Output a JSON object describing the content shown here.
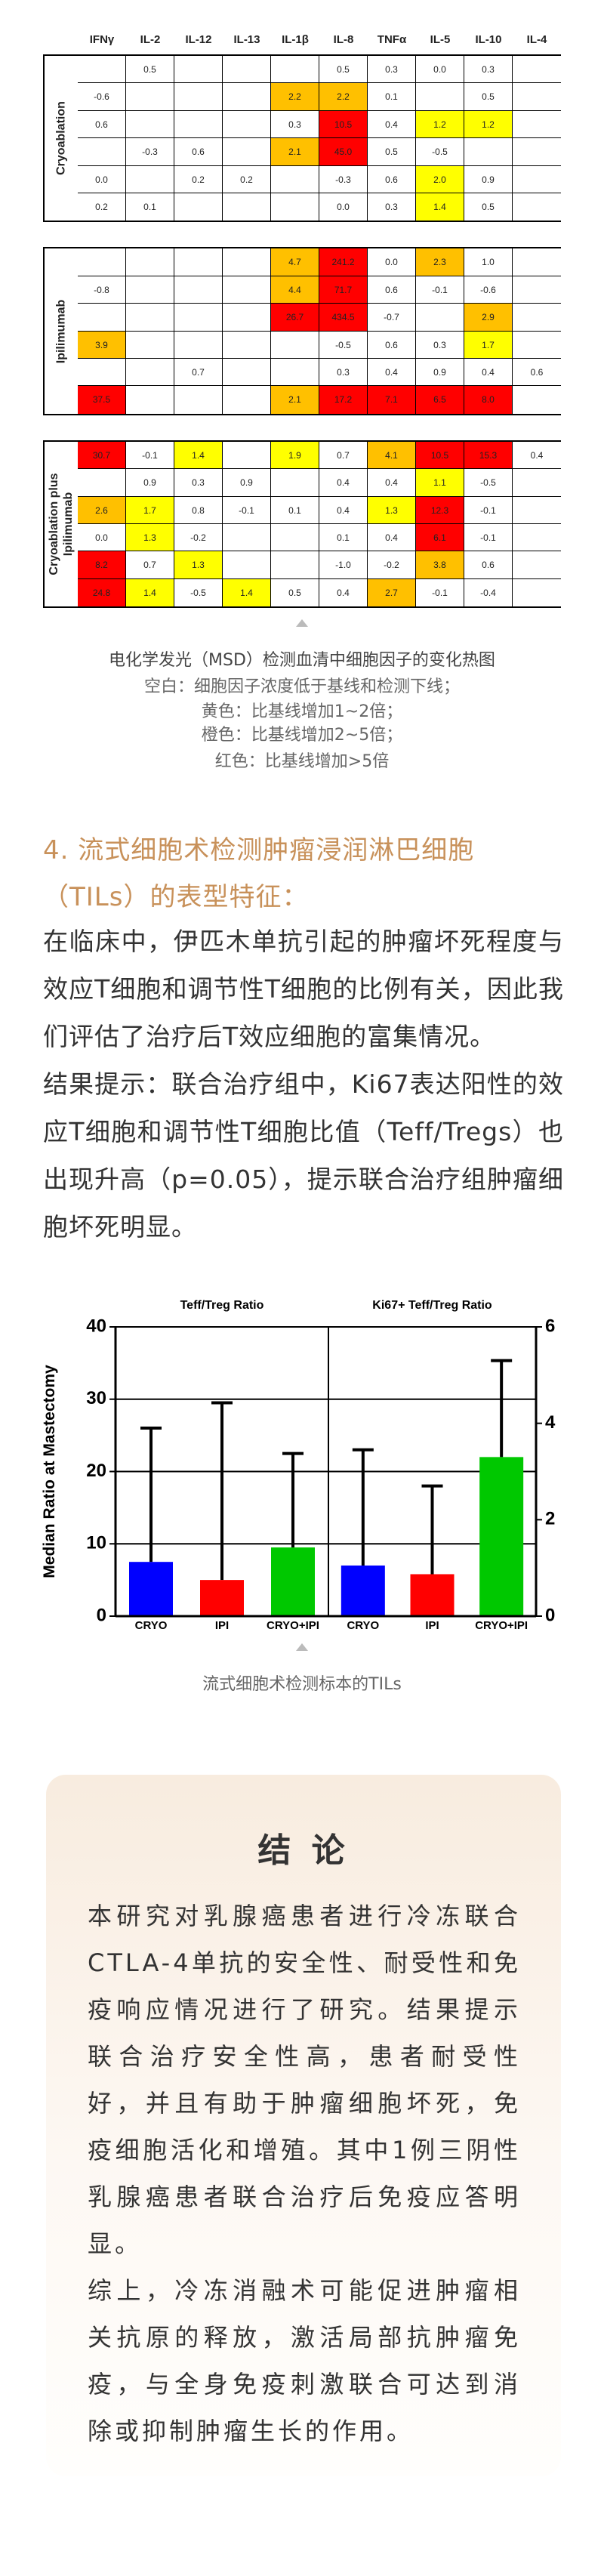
{
  "heatmap": {
    "columns": [
      "IFNγ",
      "IL-2",
      "IL-12",
      "IL-13",
      "IL-1β",
      "IL-8",
      "TNFα",
      "IL-5",
      "IL-10",
      "IL-4"
    ],
    "levels": [
      {
        "above": 1,
        "color": "#ffff00"
      },
      {
        "above": 2,
        "color": "#ffc000"
      },
      {
        "above": 5,
        "color": "#ff0000"
      }
    ],
    "groups": [
      {
        "label": "Cryoablation",
        "rows": [
          [
            null,
            "0.5",
            null,
            null,
            null,
            "0.5",
            "0.3",
            "0.0",
            "0.3",
            null
          ],
          [
            "-0.6",
            null,
            null,
            null,
            "2.2",
            "2.2",
            "0.1",
            null,
            "0.5",
            null
          ],
          [
            "0.6",
            null,
            null,
            null,
            "0.3",
            "10.5",
            "0.4",
            "1.2",
            "1.2",
            null
          ],
          [
            null,
            "-0.3",
            "0.6",
            null,
            "2.1",
            "45.0",
            "0.5",
            "-0.5",
            null,
            null
          ],
          [
            "0.0",
            null,
            "0.2",
            "0.2",
            null,
            "-0.3",
            "0.6",
            "2.0",
            "0.9",
            null
          ],
          [
            "0.2",
            "0.1",
            null,
            null,
            null,
            "0.0",
            "0.3",
            "1.4",
            "0.5",
            null
          ]
        ]
      },
      {
        "label": "Ipilimumab",
        "rows": [
          [
            null,
            null,
            null,
            null,
            "4.7",
            "241.2",
            "0.0",
            "2.3",
            "1.0",
            null
          ],
          [
            "-0.8",
            null,
            null,
            null,
            "4.4",
            "71.7",
            "0.6",
            "-0.1",
            "-0.6",
            null
          ],
          [
            null,
            null,
            null,
            null,
            "26.7",
            "434.5",
            "-0.7",
            null,
            "2.9",
            null
          ],
          [
            "3.9",
            null,
            null,
            null,
            null,
            "-0.5",
            "0.6",
            "0.3",
            "1.7",
            null
          ],
          [
            null,
            null,
            "0.7",
            null,
            null,
            "0.3",
            "0.4",
            "0.9",
            "0.4",
            "0.6"
          ],
          [
            "37.5",
            null,
            null,
            null,
            "2.1",
            "17.2",
            "7.1",
            "6.5",
            "8.0",
            null
          ]
        ]
      },
      {
        "label": "Cryoablation plus Ipilimumab",
        "rows": [
          [
            "30.7",
            "-0.1",
            "1.4",
            null,
            "1.9",
            "0.7",
            "4.1",
            "10.5",
            "15.3",
            "0.4"
          ],
          [
            null,
            "0.9",
            "0.3",
            "0.9",
            null,
            "0.4",
            "0.4",
            "1.1",
            "-0.5",
            null
          ],
          [
            "2.6",
            "1.7",
            "0.8",
            "-0.1",
            "0.1",
            "0.4",
            "1.3",
            "12.3",
            "-0.1",
            null
          ],
          [
            "0.0",
            "1.3",
            "-0.2",
            null,
            null,
            "0.1",
            "0.4",
            "6.1",
            "-0.1",
            null
          ],
          [
            "8.2",
            "0.7",
            "1.3",
            null,
            null,
            "-1.0",
            "-0.2",
            "3.8",
            "0.6",
            null
          ],
          [
            "24.8",
            "1.4",
            "-0.5",
            "1.4",
            "0.5",
            "0.4",
            "2.7",
            "-0.1",
            "-0.4",
            null
          ]
        ]
      }
    ]
  },
  "heatmap_caption": [
    "电化学发光（MSD）检测血清中细胞因子的变化热图",
    "空白：细胞因子浓度低于基线和检测下线；",
    "黄色：比基线增加1~2倍；",
    "橙色：比基线增加2~5倍；",
    "红色：比基线增加>5倍"
  ],
  "section": {
    "heading": "4. 流式细胞术检测肿瘤浸润淋巴细胞（TILs）的表型特征：",
    "paragraphs": [
      "在临床中，伊匹木单抗引起的肿瘤坏死程度与效应T细胞和调节性T细胞的比例有关，因此我们评估了治疗后T效应细胞的富集情况。",
      "结果提示：联合治疗组中，Ki67表达阳性的效应T细胞和调节性T细胞比值（Teff/Tregs）也出现升高（p=0.05），提示联合治疗组肿瘤细胞坏死明显。"
    ]
  },
  "chart_data": {
    "type": "bar",
    "y_label": "Median Ratio at Mastectomy",
    "ylim": [
      0,
      40
    ],
    "yticks": [
      0,
      10,
      20,
      30,
      40
    ],
    "y2lim": [
      0,
      6
    ],
    "y2ticks": [
      0,
      2,
      4,
      6
    ],
    "grid": true,
    "colors": [
      "#0000ff",
      "#ff0000",
      "#00c800"
    ],
    "panels": [
      {
        "title": "Teff/Treg Ratio",
        "categories": [
          "CRYO",
          "IPI",
          "CRYO+IPI"
        ],
        "values": [
          7.5,
          5,
          9.5
        ],
        "errors": [
          18.5,
          24.5,
          13
        ]
      },
      {
        "title": "Ki67+ Teff/Treg Ratio",
        "axis": "y2",
        "categories": [
          "CRYO",
          "IPI",
          "CRYO+IPI"
        ],
        "values": [
          1.05,
          0.87,
          3.3
        ],
        "errors": [
          2.4,
          1.83,
          2.0
        ]
      }
    ]
  },
  "chart_caption": "流式细胞术检测标本的TILs",
  "conclusion": {
    "title": "结 论",
    "paragraphs": [
      "本研究对乳腺癌患者进行冷冻联合CTLA-4单抗的安全性、耐受性和免疫响应情况进行了研究。结果提示联合治疗安全性高，患者耐受性好，并且有助于肿瘤细胞坏死，免疫细胞活化和增殖。其中1例三阴性乳腺癌患者联合治疗后免疫应答明显。",
      "综上，冷冻消融术可能促进肿瘤相关抗原的释放，激活局部抗肿瘤免疫，与全身免疫刺激联合可达到消除或抑制肿瘤生长的作用。"
    ]
  }
}
